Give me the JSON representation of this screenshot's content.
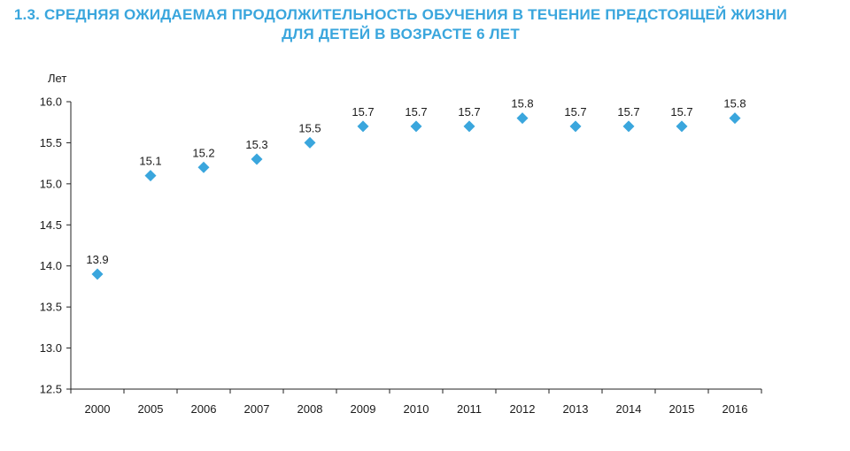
{
  "chart_data": {
    "type": "scatter",
    "title": [
      "1.3. СРЕДНЯЯ ОЖИДАЕМАЯ ПРОДОЛЖИТЕЛЬНОСТЬ ОБУЧЕНИЯ В ТЕЧЕНИЕ ПРЕДСТОЯЩЕЙ ЖИЗНИ",
      "ДЛЯ ДЕТЕЙ В ВОЗРАСТЕ 6 ЛЕТ"
    ],
    "ylabel": "Лет",
    "categories": [
      "2000",
      "2005",
      "2006",
      "2007",
      "2008",
      "2009",
      "2010",
      "2011",
      "2012",
      "2013",
      "2014",
      "2015",
      "2016"
    ],
    "values": [
      13.9,
      15.1,
      15.2,
      15.3,
      15.5,
      15.7,
      15.7,
      15.7,
      15.8,
      15.7,
      15.7,
      15.7,
      15.8
    ],
    "data_labels": [
      "13.9",
      "15.1",
      "15.2",
      "15.3",
      "15.5",
      "15.7",
      "15.7",
      "15.7",
      "15.8",
      "15.7",
      "15.7",
      "15.7",
      "15.8"
    ],
    "ylim": [
      12.5,
      16.0
    ],
    "yticks": [
      "12.5",
      "13.0",
      "13.5",
      "14.0",
      "14.5",
      "15.0",
      "15.5",
      "16.0"
    ],
    "grid": false,
    "marker": "diamond",
    "color": "#3aa6dd"
  }
}
